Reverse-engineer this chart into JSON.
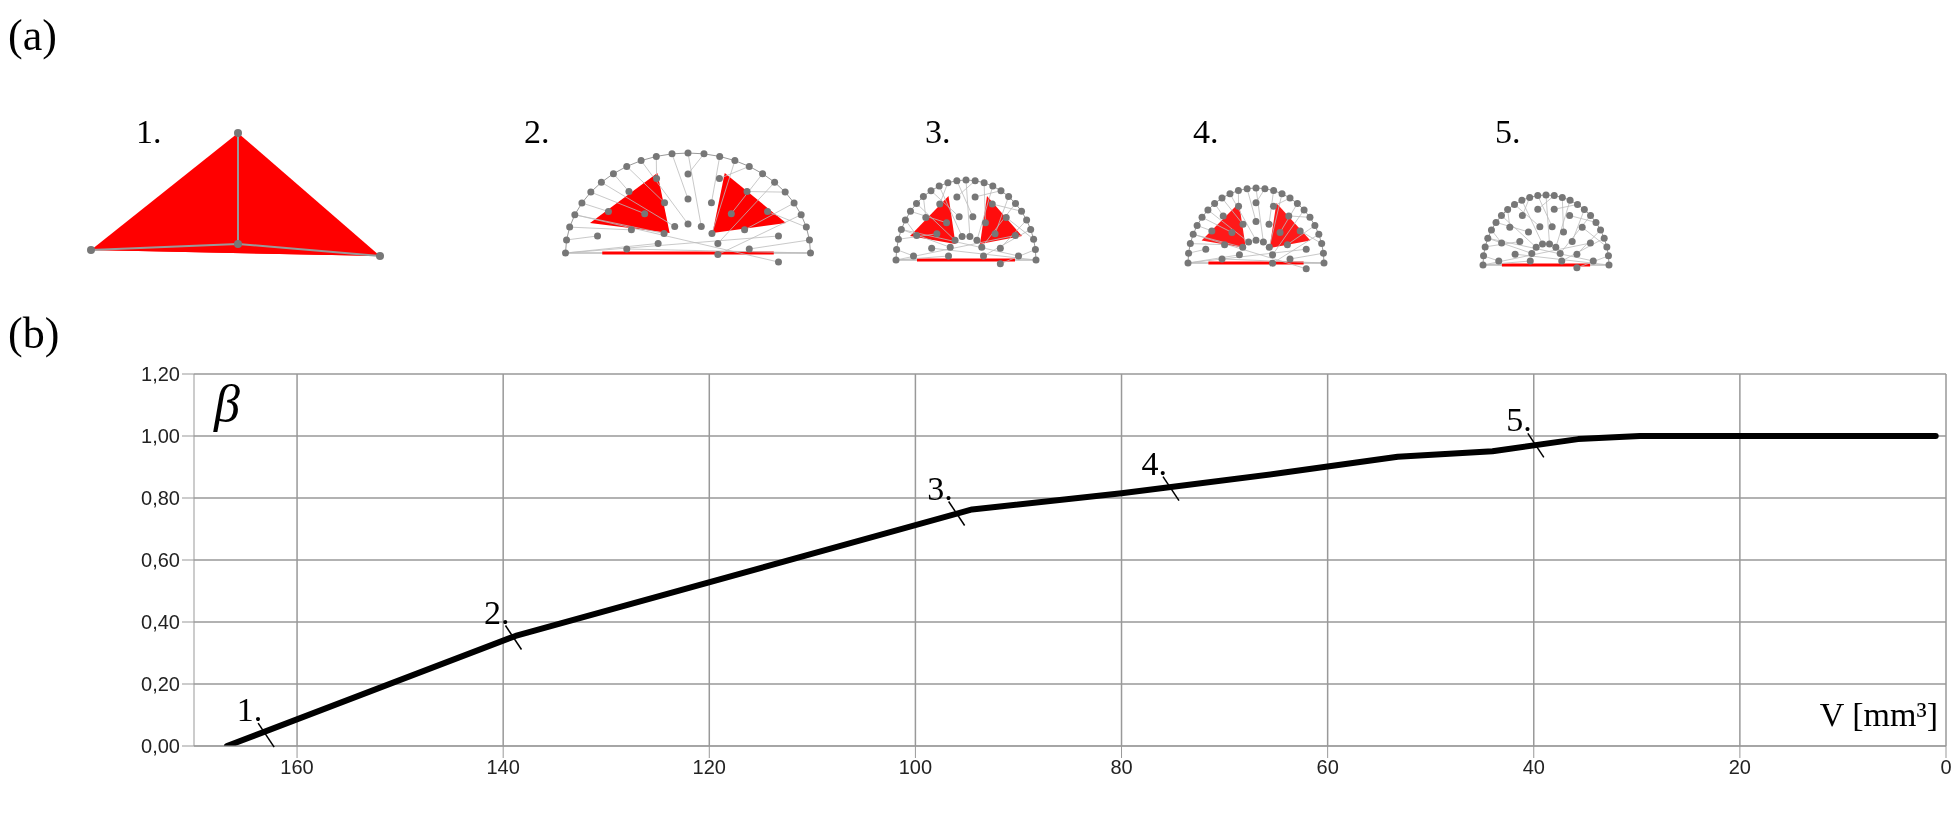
{
  "chart_data": {
    "type": "line",
    "xlabel": "V [mm³]",
    "ylabel": "β",
    "x": [
      166.8,
      138.8,
      94.5,
      80,
      64.2,
      53.2,
      44,
      35.7,
      29.7,
      1
    ],
    "series": [
      {
        "color": "#000000",
        "values": [
          0,
          0.355,
          0.763,
          0.815,
          0.882,
          0.933,
          0.951,
          0.99,
          1,
          1
        ]
      }
    ],
    "xlim": [
      170,
      0
    ],
    "xticks": [
      160,
      140,
      120,
      100,
      80,
      60,
      40,
      20,
      0
    ],
    "ylim": [
      0,
      1.2
    ],
    "yticks": [
      {
        "value": 0,
        "label": "0,00"
      },
      {
        "value": 0.2,
        "label": "0,20"
      },
      {
        "value": 0.4,
        "label": "0,40"
      },
      {
        "value": 0.6,
        "label": "0,60"
      },
      {
        "value": 0.8,
        "label": "0,80"
      },
      {
        "value": 1,
        "label": "1,00"
      },
      {
        "value": 1.2,
        "label": "1,20"
      }
    ],
    "grid": true,
    "marker": "none",
    "line_style": "solid",
    "legend": false,
    "annotations": [
      "(a)",
      "1.",
      "2.",
      "3.",
      "4.",
      "5.",
      "(b)",
      {
        "text": "1.",
        "x": 163,
        "y": 0.035
      },
      {
        "text": "2.",
        "x": 139,
        "y": 0.35
      },
      {
        "text": "3.",
        "x": 96,
        "y": 0.75
      },
      {
        "text": "4.",
        "x": 75.2,
        "y": 0.83
      },
      {
        "text": "5.",
        "x": 39.8,
        "y": 0.97
      }
    ]
  }
}
